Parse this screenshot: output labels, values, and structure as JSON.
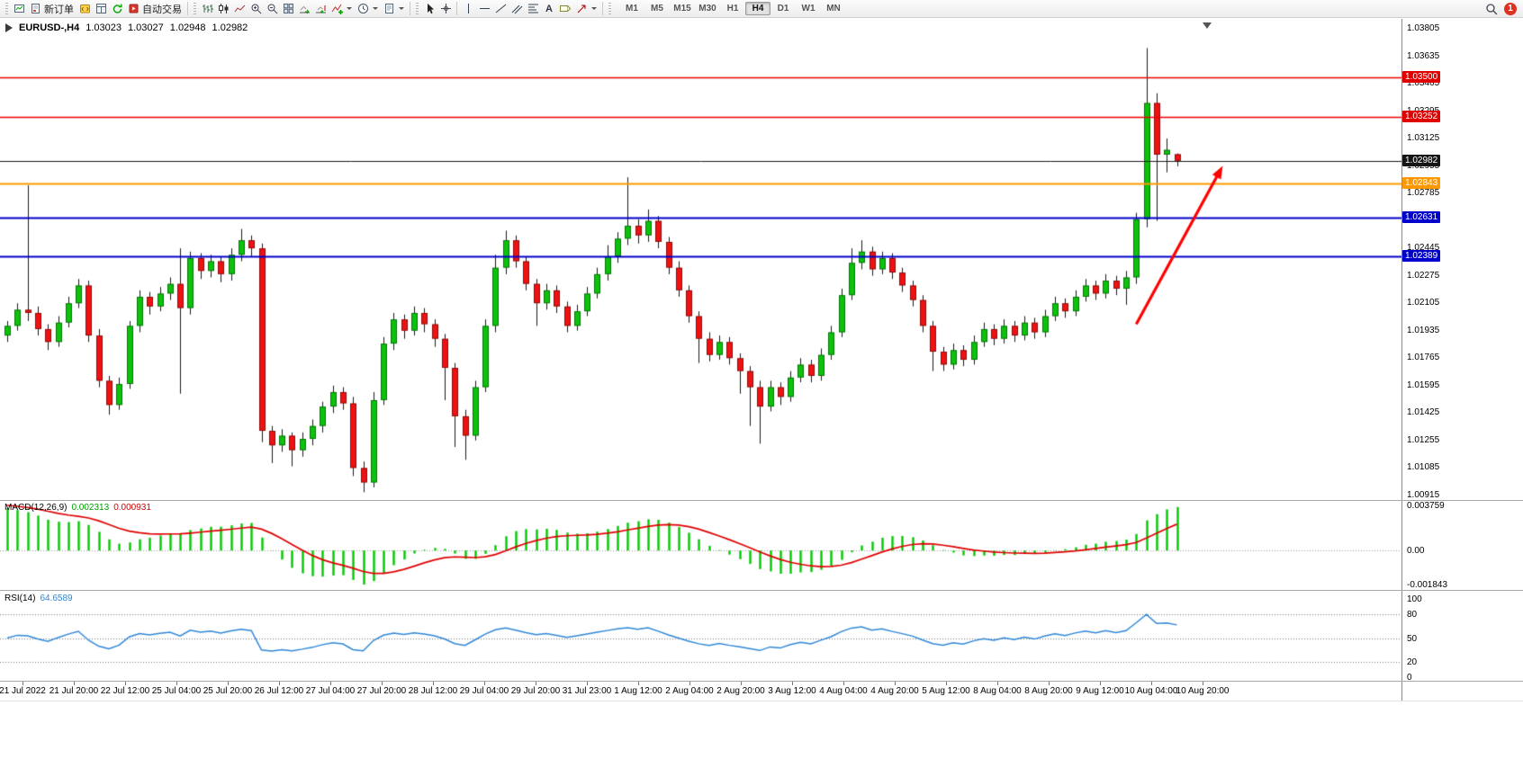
{
  "toolbar": {
    "new_order": "新订单",
    "autotrading": "自动交易",
    "text_tool": "A",
    "timeframes": [
      "M1",
      "M5",
      "M15",
      "M30",
      "H1",
      "H4",
      "D1",
      "W1",
      "MN"
    ],
    "active_timeframe": "H4",
    "notification_badge": "1"
  },
  "chart_header": {
    "symbol_period": "EURUSD-,H4",
    "open": "1.03023",
    "high": "1.03027",
    "low": "1.02948",
    "close": "1.02982"
  },
  "price_axis": {
    "labels": [
      "1.03805",
      "1.03635",
      "1.03465",
      "1.03295",
      "1.03125",
      "1.02955",
      "1.02785",
      "1.02615",
      "1.02445",
      "1.02275",
      "1.02105",
      "1.01935",
      "1.01765",
      "1.01595",
      "1.01425",
      "1.01255",
      "1.01085",
      "1.00915"
    ]
  },
  "price_tags": [
    {
      "label": "1.03500",
      "color": "#e00000"
    },
    {
      "label": "1.03252",
      "color": "#e00000"
    },
    {
      "label": "1.02982",
      "color": "#151515"
    },
    {
      "label": "1.02843",
      "color": "#ff9800"
    },
    {
      "label": "1.02631",
      "color": "#0000cc"
    },
    {
      "label": "1.02389",
      "color": "#0000cc"
    }
  ],
  "time_axis": {
    "labels": [
      "21 Jul 2022",
      "21 Jul 20:00",
      "22 Jul 12:00",
      "25 Jul 04:00",
      "25 Jul 20:00",
      "26 Jul 12:00",
      "27 Jul 04:00",
      "27 Jul 20:00",
      "28 Jul 12:00",
      "29 Jul 04:00",
      "29 Jul 20:00",
      "31 Jul 23:00",
      "1 Aug 12:00",
      "2 Aug 04:00",
      "2 Aug 20:00",
      "3 Aug 12:00",
      "4 Aug 04:00",
      "4 Aug 20:00",
      "5 Aug 12:00",
      "8 Aug 04:00",
      "8 Aug 20:00",
      "9 Aug 12:00",
      "10 Aug 04:00",
      "10 Aug 20:00"
    ]
  },
  "macd_panel": {
    "name": "MACD(12,26,9)",
    "value_main": "0.002313",
    "value_signal": "0.000931",
    "axis_labels": [
      "0.003759",
      "0.00",
      "-0.001843"
    ]
  },
  "rsi_panel": {
    "name": "RSI(14)",
    "value": "64.6589",
    "axis_labels": [
      "100",
      "80",
      "50",
      "20",
      "0"
    ],
    "levels": [
      80,
      50,
      20
    ]
  },
  "chart_data": {
    "type": "candlestick",
    "symbol": "EURUSD-",
    "period": "H4",
    "title": "EURUSD-,H4",
    "price_scale": {
      "min": 1.00915,
      "max": 1.03805
    },
    "up_color": "#0dc20d",
    "down_color": "#ef1212",
    "macd_hist_color": "#00c800",
    "macd_signal_color": "#e00000",
    "rsi_color": "#2f87d8",
    "initial_macd": 0.0028,
    "horizontal_lines": [
      {
        "price": 1.035,
        "color": "#ee0000",
        "width": 1.4
      },
      {
        "price": 1.03252,
        "color": "#ee0000",
        "width": 1.4
      },
      {
        "price": 1.02843,
        "color": "#ff9800",
        "width": 2.2
      },
      {
        "price": 1.02631,
        "color": "#0000cc",
        "width": 2.0
      },
      {
        "price": 1.02389,
        "color": "#0000cc",
        "width": 2.0
      }
    ],
    "current_price": {
      "price": 1.02982,
      "color": "#1a1a1a"
    },
    "indicators": [
      {
        "name": "MACD",
        "params": [
          12,
          26,
          9
        ],
        "last_values": [
          0.002313,
          0.000931
        ]
      },
      {
        "name": "RSI",
        "params": [
          14
        ],
        "last_value": 64.6589
      }
    ],
    "annotations": [
      {
        "type": "arrow",
        "color": "#ff0000",
        "from": {
          "bar": 111,
          "price": 1.0197
        },
        "to": {
          "bar": 119.5,
          "price": 1.0295
        }
      }
    ],
    "candles": [
      [
        1.019,
        1.0199,
        1.0186,
        1.0196
      ],
      [
        1.0196,
        1.021,
        1.0193,
        1.0206
      ],
      [
        1.0206,
        1.0283,
        1.0199,
        1.0204
      ],
      [
        1.0204,
        1.0208,
        1.019,
        1.0194
      ],
      [
        1.0194,
        1.0197,
        1.0181,
        1.0186
      ],
      [
        1.0186,
        1.0202,
        1.0183,
        1.0198
      ],
      [
        1.0198,
        1.0214,
        1.0195,
        1.021
      ],
      [
        1.021,
        1.0225,
        1.0207,
        1.0221
      ],
      [
        1.0221,
        1.0224,
        1.0186,
        1.019
      ],
      [
        1.019,
        1.0194,
        1.0158,
        1.0162
      ],
      [
        1.0162,
        1.0165,
        1.0141,
        1.0147
      ],
      [
        1.0147,
        1.0164,
        1.0144,
        1.016
      ],
      [
        1.016,
        1.0199,
        1.0157,
        1.0196
      ],
      [
        1.0196,
        1.0218,
        1.0192,
        1.0214
      ],
      [
        1.0214,
        1.0217,
        1.0203,
        1.0208
      ],
      [
        1.0208,
        1.022,
        1.0205,
        1.0216
      ],
      [
        1.0216,
        1.0226,
        1.0212,
        1.0222
      ],
      [
        1.0222,
        1.0244,
        1.0154,
        1.0207
      ],
      [
        1.0207,
        1.0242,
        1.0203,
        1.0238
      ],
      [
        1.0238,
        1.0241,
        1.0225,
        1.023
      ],
      [
        1.023,
        1.024,
        1.0226,
        1.0236
      ],
      [
        1.0236,
        1.0239,
        1.0223,
        1.0228
      ],
      [
        1.0228,
        1.0244,
        1.0224,
        1.024
      ],
      [
        1.024,
        1.0256,
        1.0236,
        1.0249
      ],
      [
        1.0249,
        1.0252,
        1.0239,
        1.0244
      ],
      [
        1.0244,
        1.0247,
        1.0124,
        1.0131
      ],
      [
        1.0131,
        1.0134,
        1.0111,
        1.0122
      ],
      [
        1.0122,
        1.0132,
        1.0118,
        1.0128
      ],
      [
        1.0128,
        1.013,
        1.0109,
        1.0119
      ],
      [
        1.0119,
        1.013,
        1.0115,
        1.0126
      ],
      [
        1.0126,
        1.0138,
        1.0122,
        1.0134
      ],
      [
        1.0134,
        1.0149,
        1.013,
        1.0146
      ],
      [
        1.0146,
        1.0159,
        1.0142,
        1.0155
      ],
      [
        1.0155,
        1.0158,
        1.0144,
        1.0148
      ],
      [
        1.0148,
        1.0152,
        1.0103,
        1.0108
      ],
      [
        1.0108,
        1.0112,
        1.0093,
        1.0099
      ],
      [
        1.0099,
        1.0155,
        1.0096,
        1.015
      ],
      [
        1.015,
        1.0189,
        1.0147,
        1.0185
      ],
      [
        1.0185,
        1.0204,
        1.0181,
        1.02
      ],
      [
        1.02,
        1.0203,
        1.0188,
        1.0193
      ],
      [
        1.0193,
        1.0208,
        1.019,
        1.0204
      ],
      [
        1.0204,
        1.0207,
        1.0192,
        1.0197
      ],
      [
        1.0197,
        1.02,
        1.0183,
        1.0188
      ],
      [
        1.0188,
        1.0191,
        1.015,
        1.017
      ],
      [
        1.017,
        1.0173,
        1.0121,
        1.014
      ],
      [
        1.014,
        1.0144,
        1.0113,
        1.0128
      ],
      [
        1.0128,
        1.0162,
        1.0125,
        1.0158
      ],
      [
        1.0158,
        1.02,
        1.0155,
        1.0196
      ],
      [
        1.0196,
        1.024,
        1.0192,
        1.0232
      ],
      [
        1.0232,
        1.0255,
        1.0228,
        1.0249
      ],
      [
        1.0249,
        1.0252,
        1.0232,
        1.0236
      ],
      [
        1.0236,
        1.0239,
        1.0218,
        1.0222
      ],
      [
        1.0222,
        1.0225,
        1.0196,
        1.021
      ],
      [
        1.021,
        1.0222,
        1.0206,
        1.0218
      ],
      [
        1.0218,
        1.0221,
        1.0204,
        1.0208
      ],
      [
        1.0208,
        1.0211,
        1.0192,
        1.0196
      ],
      [
        1.0196,
        1.0209,
        1.0193,
        1.0205
      ],
      [
        1.0205,
        1.022,
        1.0202,
        1.0216
      ],
      [
        1.0216,
        1.0232,
        1.0213,
        1.0228
      ],
      [
        1.0228,
        1.0246,
        1.0224,
        1.0239
      ],
      [
        1.0239,
        1.0254,
        1.0235,
        1.025
      ],
      [
        1.025,
        1.0288,
        1.0246,
        1.0258
      ],
      [
        1.0258,
        1.0262,
        1.0247,
        1.0252
      ],
      [
        1.0252,
        1.0268,
        1.0248,
        1.0261
      ],
      [
        1.0261,
        1.0264,
        1.0244,
        1.0248
      ],
      [
        1.0248,
        1.0251,
        1.0228,
        1.0232
      ],
      [
        1.0232,
        1.0236,
        1.0214,
        1.0218
      ],
      [
        1.0218,
        1.0221,
        1.0198,
        1.0202
      ],
      [
        1.0202,
        1.0205,
        1.0173,
        1.0188
      ],
      [
        1.0188,
        1.0192,
        1.0174,
        1.0178
      ],
      [
        1.0178,
        1.019,
        1.0175,
        1.0186
      ],
      [
        1.0186,
        1.0189,
        1.0172,
        1.0176
      ],
      [
        1.0176,
        1.0179,
        1.0154,
        1.0168
      ],
      [
        1.0168,
        1.0171,
        1.0134,
        1.0158
      ],
      [
        1.0158,
        1.0162,
        1.0123,
        1.0146
      ],
      [
        1.0146,
        1.0162,
        1.0143,
        1.0158
      ],
      [
        1.0158,
        1.0161,
        1.0147,
        1.0152
      ],
      [
        1.0152,
        1.0168,
        1.0149,
        1.0164
      ],
      [
        1.0164,
        1.0176,
        1.0161,
        1.0172
      ],
      [
        1.0172,
        1.0175,
        1.0161,
        1.0165
      ],
      [
        1.0165,
        1.0182,
        1.0162,
        1.0178
      ],
      [
        1.0178,
        1.0196,
        1.0175,
        1.0192
      ],
      [
        1.0192,
        1.0219,
        1.0189,
        1.0215
      ],
      [
        1.0215,
        1.0244,
        1.0212,
        1.0235
      ],
      [
        1.0235,
        1.0249,
        1.0231,
        1.0242
      ],
      [
        1.0242,
        1.0245,
        1.0227,
        1.0231
      ],
      [
        1.0231,
        1.0242,
        1.0228,
        1.0238
      ],
      [
        1.0238,
        1.0241,
        1.0225,
        1.0229
      ],
      [
        1.0229,
        1.0232,
        1.0217,
        1.0221
      ],
      [
        1.0221,
        1.0224,
        1.0208,
        1.0212
      ],
      [
        1.0212,
        1.0215,
        1.0192,
        1.0196
      ],
      [
        1.0196,
        1.0199,
        1.0168,
        1.018
      ],
      [
        1.018,
        1.0183,
        1.0168,
        1.0172
      ],
      [
        1.0172,
        1.0185,
        1.0169,
        1.0181
      ],
      [
        1.0181,
        1.0184,
        1.0171,
        1.0175
      ],
      [
        1.0175,
        1.019,
        1.0172,
        1.0186
      ],
      [
        1.0186,
        1.0198,
        1.0183,
        1.0194
      ],
      [
        1.0194,
        1.0197,
        1.0184,
        1.0188
      ],
      [
        1.0188,
        1.02,
        1.0185,
        1.0196
      ],
      [
        1.0196,
        1.0199,
        1.0186,
        1.019
      ],
      [
        1.019,
        1.0202,
        1.0187,
        1.0198
      ],
      [
        1.0198,
        1.0201,
        1.0188,
        1.0192
      ],
      [
        1.0192,
        1.0206,
        1.0189,
        1.0202
      ],
      [
        1.0202,
        1.0214,
        1.0199,
        1.021
      ],
      [
        1.021,
        1.0213,
        1.0201,
        1.0205
      ],
      [
        1.0205,
        1.0218,
        1.0202,
        1.0214
      ],
      [
        1.0214,
        1.0225,
        1.0211,
        1.0221
      ],
      [
        1.0221,
        1.0224,
        1.0212,
        1.0216
      ],
      [
        1.0216,
        1.0228,
        1.0213,
        1.0224
      ],
      [
        1.0224,
        1.0227,
        1.0215,
        1.0219
      ],
      [
        1.0219,
        1.023,
        1.0209,
        1.0226
      ],
      [
        1.0226,
        1.0266,
        1.0222,
        1.0262
      ],
      [
        1.0262,
        1.0368,
        1.0257,
        1.0334
      ],
      [
        1.0334,
        1.034,
        1.0261,
        1.0302
      ],
      [
        1.0302,
        1.0312,
        1.0291,
        1.0305
      ],
      [
        1.03023,
        1.03027,
        1.02948,
        1.02982
      ]
    ]
  }
}
